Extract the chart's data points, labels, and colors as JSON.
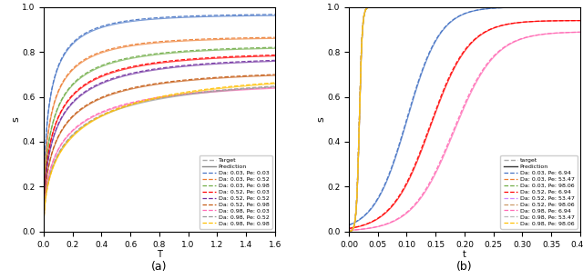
{
  "subplot_a": {
    "title": "(a)",
    "xlabel": "T",
    "ylabel": "s",
    "xlim": [
      0.0,
      1.6
    ],
    "ylim": [
      0.0,
      1.0
    ],
    "xticks": [
      0.0,
      0.2,
      0.4,
      0.6,
      0.8,
      1.0,
      1.2,
      1.4,
      1.6
    ],
    "yticks": [
      0.0,
      0.2,
      0.4,
      0.6,
      0.8,
      1.0
    ],
    "series": [
      {
        "Da": 0.03,
        "Pe": 0.03,
        "color": "#4472C4",
        "k": 4.5,
        "sat": 0.97
      },
      {
        "Da": 0.03,
        "Pe": 0.52,
        "color": "#ED7D31",
        "k": 4.0,
        "sat": 0.87
      },
      {
        "Da": 0.03,
        "Pe": 0.98,
        "color": "#70AD47",
        "k": 3.5,
        "sat": 0.83
      },
      {
        "Da": 0.52,
        "Pe": 0.03,
        "color": "#FF0000",
        "k": 3.2,
        "sat": 0.8
      },
      {
        "Da": 0.52,
        "Pe": 0.52,
        "color": "#7030A0",
        "k": 3.0,
        "sat": 0.78
      },
      {
        "Da": 0.52,
        "Pe": 0.98,
        "color": "#C55A11",
        "k": 2.8,
        "sat": 0.72
      },
      {
        "Da": 0.98,
        "Pe": 0.03,
        "color": "#FF69B4",
        "k": 2.5,
        "sat": 0.67
      },
      {
        "Da": 0.98,
        "Pe": 0.52,
        "color": "#999999",
        "k": 2.2,
        "sat": 0.69
      },
      {
        "Da": 0.98,
        "Pe": 0.98,
        "color": "#FFC000",
        "k": 2.0,
        "sat": 0.72
      }
    ]
  },
  "subplot_b": {
    "title": "(b)",
    "xlabel": "t",
    "ylabel": "s",
    "xlim": [
      0.0,
      0.4
    ],
    "ylim": [
      0.0,
      1.0
    ],
    "xticks": [
      0.0,
      0.05,
      0.1,
      0.15,
      0.2,
      0.25,
      0.3,
      0.35,
      0.4
    ],
    "yticks": [
      0.0,
      0.2,
      0.4,
      0.6,
      0.8,
      1.0
    ],
    "series": [
      {
        "Da": 0.03,
        "Pe": 6.94,
        "color": "#4472C4",
        "t0": 0.1,
        "k": 35,
        "sat": 1.0,
        "sharp": false
      },
      {
        "Da": 0.03,
        "Pe": 53.47,
        "color": "#ED7D31",
        "t0": 0.018,
        "k": 400,
        "sat": 1.0,
        "sharp": true
      },
      {
        "Da": 0.03,
        "Pe": 98.06,
        "color": "#70AD47",
        "t0": 0.018,
        "k": 400,
        "sat": 1.0,
        "sharp": true
      },
      {
        "Da": 0.52,
        "Pe": 6.94,
        "color": "#FF0000",
        "t0": 0.14,
        "k": 30,
        "sat": 0.94,
        "sharp": false
      },
      {
        "Da": 0.52,
        "Pe": 53.47,
        "color": "#CC88FF",
        "t0": 0.018,
        "k": 400,
        "sat": 1.0,
        "sharp": true
      },
      {
        "Da": 0.52,
        "Pe": 98.06,
        "color": "#CC9966",
        "t0": 0.018,
        "k": 400,
        "sat": 1.0,
        "sharp": true
      },
      {
        "Da": 0.98,
        "Pe": 6.94,
        "color": "#FF69B4",
        "t0": 0.18,
        "k": 28,
        "sat": 0.89,
        "sharp": false
      },
      {
        "Da": 0.98,
        "Pe": 53.47,
        "color": "#BBBBBB",
        "t0": 0.018,
        "k": 400,
        "sat": 1.0,
        "sharp": true
      },
      {
        "Da": 0.98,
        "Pe": 98.06,
        "color": "#FFC000",
        "t0": 0.018,
        "k": 400,
        "sat": 1.0,
        "sharp": true
      }
    ]
  }
}
